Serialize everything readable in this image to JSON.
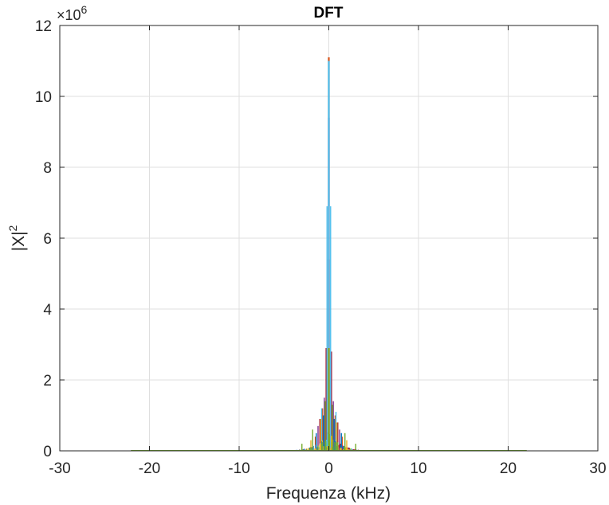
{
  "chart_data": {
    "type": "line",
    "title": "DFT",
    "xlabel": "Frequenza (kHz)",
    "ylabel_base": "|X|",
    "ylabel_power": "2",
    "y_multiplier_base": "×10",
    "y_multiplier_power": "6",
    "xlim": [
      -30,
      30
    ],
    "ylim": [
      0,
      12
    ],
    "y_scale_factor": 1000000,
    "xticks": [
      -30,
      -20,
      -10,
      0,
      10,
      20,
      30
    ],
    "xtick_labels": [
      "-30",
      "-20",
      "-10",
      "0",
      "10",
      "20",
      "30"
    ],
    "yticks": [
      0,
      2,
      4,
      6,
      8,
      10,
      12
    ],
    "ytick_labels": [
      "0",
      "2",
      "4",
      "6",
      "8",
      "10",
      "12"
    ],
    "grid": true,
    "legend": "none",
    "x_range_data": [
      -22.05,
      22.05
    ],
    "series": [
      {
        "color": "#D95319",
        "peak_x": 0,
        "peak_y": 11.1,
        "sidelobes": [
          [
            -1.5,
            0.4
          ],
          [
            1.5,
            0.4
          ],
          [
            -0.7,
            1.2
          ],
          [
            0.7,
            1.0
          ]
        ]
      },
      {
        "color": "#7E2F8E",
        "peak_x": 0,
        "peak_y": 9.4,
        "sidelobes": [
          [
            -0.5,
            1.5
          ],
          [
            0.5,
            1.4
          ],
          [
            -1.2,
            0.7
          ],
          [
            1.2,
            0.6
          ]
        ]
      },
      {
        "color": "#A2142F",
        "peak_x": 0,
        "peak_y": 5.4,
        "sidelobes": [
          [
            -0.3,
            2.9
          ],
          [
            0.3,
            2.8
          ],
          [
            -1.0,
            0.9
          ],
          [
            1.0,
            0.8
          ]
        ]
      },
      {
        "color": "#4DBEEE",
        "peak_x": 0,
        "peak_y": 11.0,
        "sidelobes": [
          [
            -0.2,
            6.9
          ],
          [
            0.2,
            6.9
          ],
          [
            -0.8,
            1.2
          ],
          [
            0.8,
            1.1
          ]
        ]
      },
      {
        "color": "#0072BD",
        "peak_x": 0,
        "peak_y": 2.0,
        "sidelobes": [
          [
            -0.6,
            1.0
          ],
          [
            0.6,
            0.9
          ],
          [
            -1.4,
            0.5
          ],
          [
            1.4,
            0.5
          ]
        ]
      },
      {
        "color": "#EDB120",
        "peak_x": 0,
        "peak_y": 1.5,
        "sidelobes": [
          [
            -0.9,
            0.9
          ],
          [
            0.9,
            0.8
          ],
          [
            -2.0,
            0.3
          ],
          [
            2.0,
            0.3
          ]
        ]
      },
      {
        "color": "#77AC30",
        "peak_x": 0,
        "peak_y": 2.9,
        "sidelobes": [
          [
            -0.4,
            1.4
          ],
          [
            0.4,
            1.3
          ],
          [
            -1.8,
            0.6
          ],
          [
            1.8,
            0.5
          ],
          [
            -3.0,
            0.2
          ],
          [
            3.0,
            0.2
          ]
        ]
      }
    ]
  }
}
